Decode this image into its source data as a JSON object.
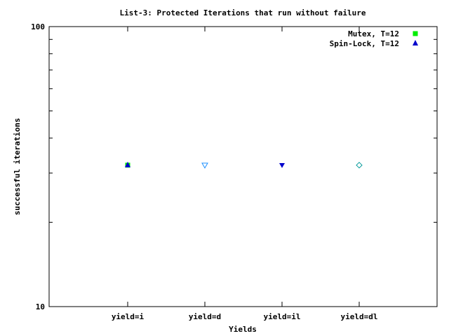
{
  "chart_data": {
    "type": "scatter",
    "title": "List-3: Protected Iterations that run without failure",
    "xlabel": "Yields",
    "ylabel": "successful iterations",
    "yscale": "log",
    "ylim": [
      10,
      100
    ],
    "y_ticks": [
      "100",
      "10"
    ],
    "categories": [
      "yield=i",
      "yield=d",
      "yield=il",
      "yield=dl"
    ],
    "legend_position": "top-right",
    "series": [
      {
        "name": "Mutex, T=12",
        "color": "#00ee00",
        "marker": "square",
        "x": [
          "yield=i"
        ],
        "y": [
          32
        ]
      },
      {
        "name": "Spin-Lock, T=12",
        "color": "#0000cc",
        "marker": "triangle",
        "x": [
          "yield=i"
        ],
        "y": [
          32
        ]
      }
    ],
    "extra_markers": [
      {
        "x": "yield=d",
        "y": 32,
        "marker": "triangle-down-open",
        "color": "#1e90ff"
      },
      {
        "x": "yield=il",
        "y": 32,
        "marker": "triangle-down",
        "color": "#0000cc"
      },
      {
        "x": "yield=dl",
        "y": 32,
        "marker": "diamond-open",
        "color": "#009999"
      }
    ]
  }
}
